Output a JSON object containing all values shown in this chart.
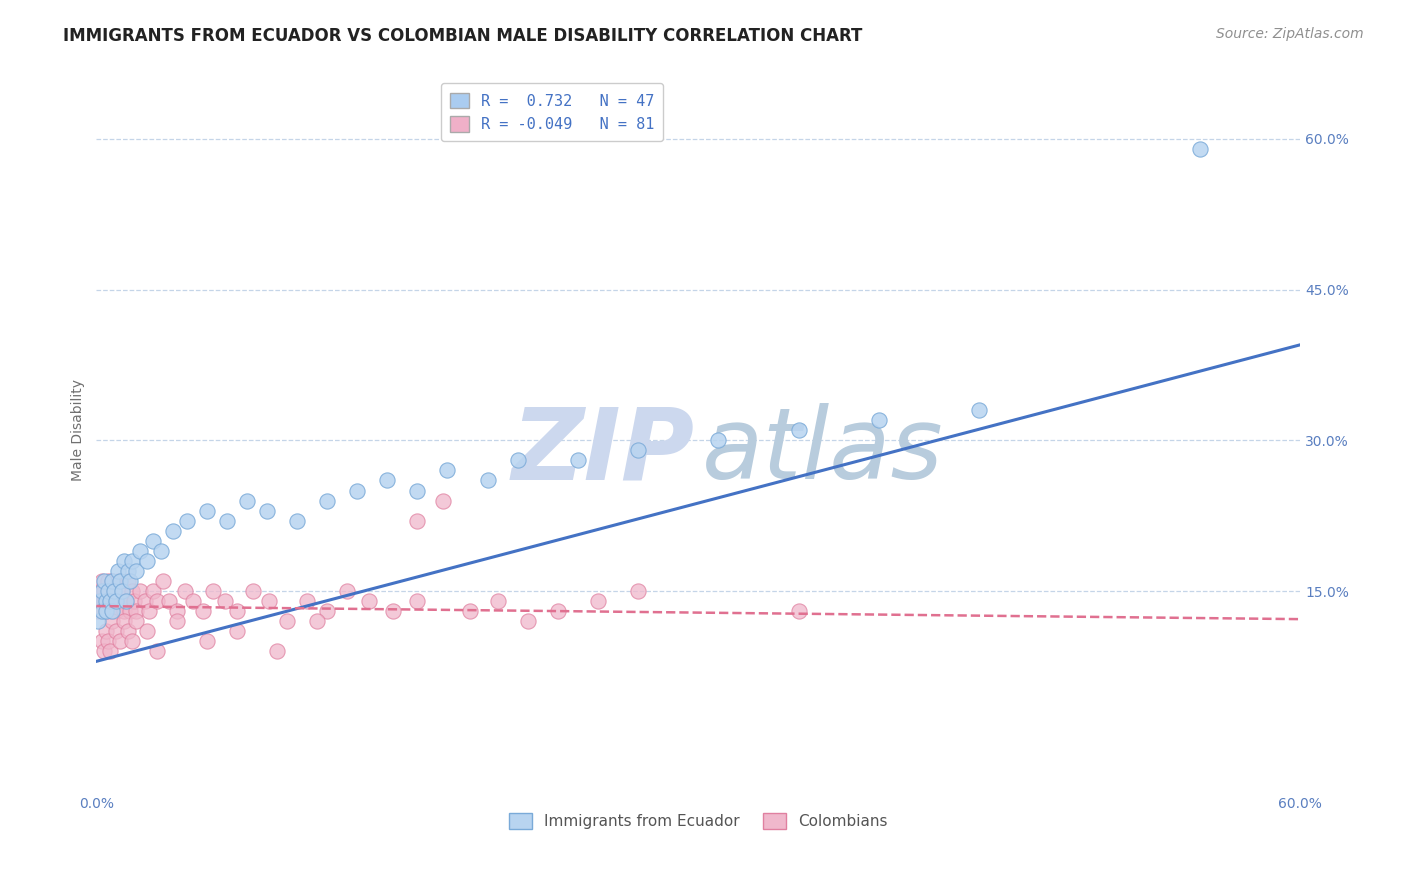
{
  "title": "IMMIGRANTS FROM ECUADOR VS COLOMBIAN MALE DISABILITY CORRELATION CHART",
  "source": "Source: ZipAtlas.com",
  "xlim": [
    0.0,
    0.6
  ],
  "ylim": [
    -0.05,
    0.67
  ],
  "ylabel": "Male Disability",
  "yticks": [
    0.15,
    0.3,
    0.45,
    0.6
  ],
  "ytick_labels": [
    "15.0%",
    "30.0%",
    "45.0%",
    "60.0%"
  ],
  "xticks": [
    0.0,
    0.6
  ],
  "xtick_labels": [
    "0.0%",
    "60.0%"
  ],
  "legend_entries": [
    {
      "label": "R =  0.732   N = 47",
      "color": "#aaccf0"
    },
    {
      "label": "R = -0.049   N = 81",
      "color": "#f0b0c8"
    }
  ],
  "ecuador_x": [
    0.001,
    0.002,
    0.003,
    0.003,
    0.004,
    0.005,
    0.005,
    0.006,
    0.007,
    0.008,
    0.008,
    0.009,
    0.01,
    0.011,
    0.012,
    0.013,
    0.014,
    0.015,
    0.016,
    0.017,
    0.018,
    0.02,
    0.022,
    0.025,
    0.028,
    0.032,
    0.038,
    0.045,
    0.055,
    0.065,
    0.075,
    0.085,
    0.1,
    0.115,
    0.13,
    0.145,
    0.16,
    0.175,
    0.195,
    0.21,
    0.24,
    0.27,
    0.31,
    0.35,
    0.39,
    0.44,
    0.55
  ],
  "ecuador_y": [
    0.12,
    0.14,
    0.13,
    0.15,
    0.16,
    0.14,
    0.13,
    0.15,
    0.14,
    0.16,
    0.13,
    0.15,
    0.14,
    0.17,
    0.16,
    0.15,
    0.18,
    0.14,
    0.17,
    0.16,
    0.18,
    0.17,
    0.19,
    0.18,
    0.2,
    0.19,
    0.21,
    0.22,
    0.23,
    0.22,
    0.24,
    0.23,
    0.22,
    0.24,
    0.25,
    0.26,
    0.25,
    0.27,
    0.26,
    0.28,
    0.28,
    0.29,
    0.3,
    0.31,
    0.32,
    0.33,
    0.59
  ],
  "colombia_x": [
    0.001,
    0.001,
    0.002,
    0.002,
    0.003,
    0.003,
    0.004,
    0.004,
    0.005,
    0.005,
    0.006,
    0.006,
    0.007,
    0.007,
    0.008,
    0.008,
    0.009,
    0.009,
    0.01,
    0.01,
    0.011,
    0.012,
    0.013,
    0.014,
    0.015,
    0.016,
    0.017,
    0.018,
    0.019,
    0.02,
    0.022,
    0.024,
    0.026,
    0.028,
    0.03,
    0.033,
    0.036,
    0.04,
    0.044,
    0.048,
    0.053,
    0.058,
    0.064,
    0.07,
    0.078,
    0.086,
    0.095,
    0.105,
    0.115,
    0.125,
    0.136,
    0.148,
    0.16,
    0.173,
    0.186,
    0.2,
    0.215,
    0.23,
    0.25,
    0.27,
    0.003,
    0.004,
    0.005,
    0.006,
    0.007,
    0.008,
    0.01,
    0.012,
    0.014,
    0.016,
    0.018,
    0.02,
    0.025,
    0.03,
    0.04,
    0.055,
    0.07,
    0.09,
    0.11,
    0.16,
    0.35
  ],
  "colombia_y": [
    0.14,
    0.13,
    0.15,
    0.14,
    0.13,
    0.16,
    0.14,
    0.15,
    0.13,
    0.14,
    0.16,
    0.13,
    0.15,
    0.14,
    0.13,
    0.16,
    0.14,
    0.15,
    0.13,
    0.14,
    0.16,
    0.14,
    0.15,
    0.13,
    0.14,
    0.16,
    0.13,
    0.15,
    0.14,
    0.13,
    0.15,
    0.14,
    0.13,
    0.15,
    0.14,
    0.16,
    0.14,
    0.13,
    0.15,
    0.14,
    0.13,
    0.15,
    0.14,
    0.13,
    0.15,
    0.14,
    0.12,
    0.14,
    0.13,
    0.15,
    0.14,
    0.13,
    0.22,
    0.24,
    0.13,
    0.14,
    0.12,
    0.13,
    0.14,
    0.15,
    0.1,
    0.09,
    0.11,
    0.1,
    0.09,
    0.12,
    0.11,
    0.1,
    0.12,
    0.11,
    0.1,
    0.12,
    0.11,
    0.09,
    0.12,
    0.1,
    0.11,
    0.09,
    0.12,
    0.14,
    0.13
  ],
  "blue_trend": {
    "x_start": 0.0,
    "x_end": 0.6,
    "y_start": 0.08,
    "y_end": 0.395
  },
  "pink_trend": {
    "x_start": 0.0,
    "x_end": 0.6,
    "y_start": 0.135,
    "y_end": 0.122
  },
  "blue_trend_color": "#4472c4",
  "pink_trend_color": "#e07090",
  "ecuador_dot_color": "#b8d4f0",
  "ecuador_edge_color": "#7aaad8",
  "colombia_dot_color": "#f0b8cc",
  "colombia_edge_color": "#e080a0",
  "watermark_zip_color": "#ccd8ee",
  "watermark_atlas_color": "#b8ccdd",
  "background_color": "#ffffff",
  "title_fontsize": 12,
  "tick_fontsize": 10,
  "legend_fontsize": 11,
  "source_fontsize": 10,
  "ylabel_fontsize": 10
}
